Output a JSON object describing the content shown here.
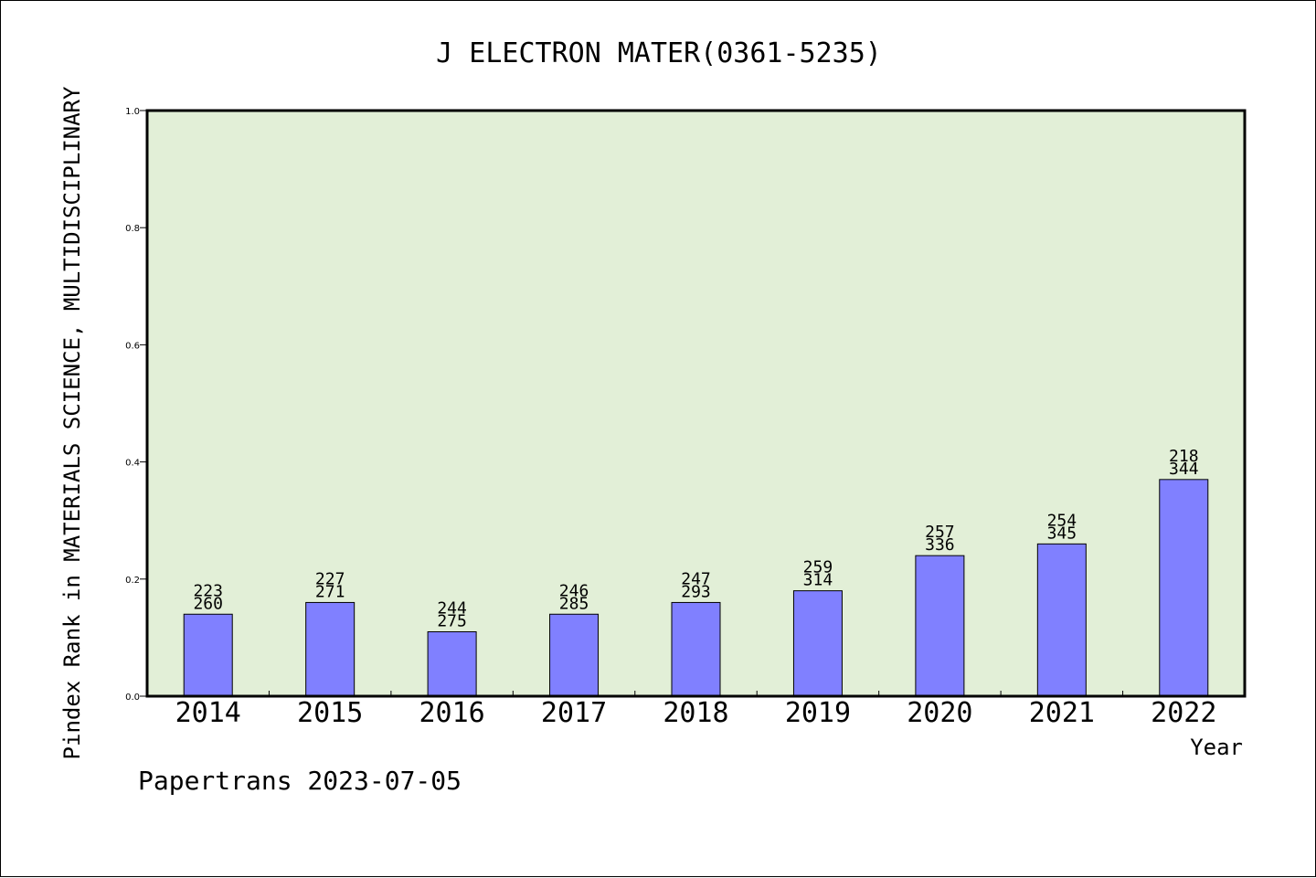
{
  "chart_data": {
    "type": "bar",
    "title": "J ELECTRON MATER(0361-5235)",
    "xlabel": "Year",
    "ylabel": "Pindex Rank in MATERIALS SCIENCE, MULTIDISCIPLINARY",
    "ylim": [
      0,
      1.0
    ],
    "yticks": [
      0.0,
      0.2,
      0.4,
      0.6,
      0.8,
      1.0
    ],
    "ytick_labels": [
      "0.0",
      "0.2",
      "0.4",
      "0.6",
      "0.8",
      "1.0"
    ],
    "categories": [
      "2014",
      "2015",
      "2016",
      "2017",
      "2018",
      "2019",
      "2020",
      "2021",
      "2022"
    ],
    "values": [
      0.14,
      0.16,
      0.11,
      0.14,
      0.16,
      0.18,
      0.24,
      0.26,
      0.37
    ],
    "rank_labels": [
      "223",
      "227",
      "244",
      "246",
      "247",
      "259",
      "257",
      "254",
      "218"
    ],
    "total_labels": [
      "260",
      "271",
      "275",
      "285",
      "293",
      "314",
      "336",
      "345",
      "344"
    ],
    "grid": false,
    "legend": "none",
    "colors": {
      "plot_background": "#e2efd7",
      "bar_fill": "#8080ff",
      "bar_stroke": "#000000",
      "text": "#000000"
    }
  },
  "footer": {
    "credit": "Papertrans 2023-07-05"
  }
}
